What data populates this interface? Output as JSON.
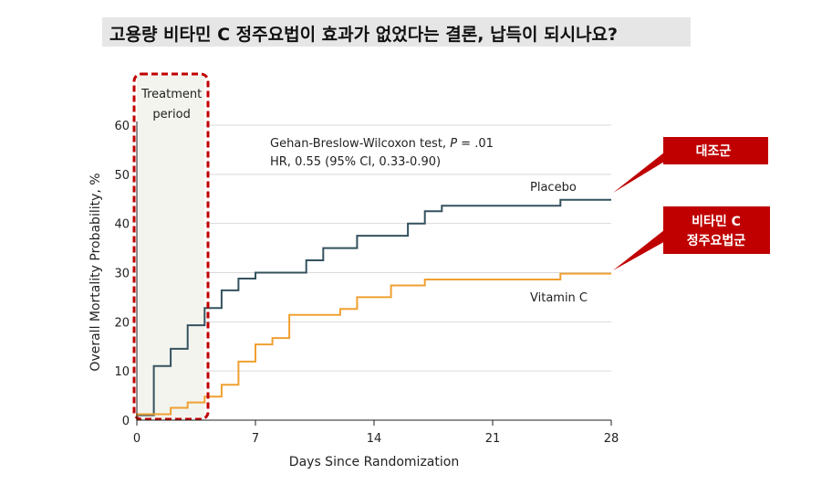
{
  "page_title": "고용량 비타민 C 정주요법이 효과가 없었다는 결론,  납득이 되시나요?",
  "colors": {
    "placebo": "#34525f",
    "vitamin_c": "#f0a030",
    "callout": "#c00000",
    "treatment_box": "#c00000",
    "treatment_fill": "#f3f4ee",
    "grid": "#d9d9d9"
  },
  "chart_data": {
    "type": "line",
    "step": true,
    "xlabel": "Days Since Randomization",
    "ylabel": "Overall Mortality Probability, %",
    "xlim": [
      0,
      28
    ],
    "ylim": [
      0,
      60
    ],
    "x_ticks": [
      0,
      7,
      14,
      21,
      28
    ],
    "y_ticks": [
      0,
      10,
      20,
      30,
      40,
      50,
      60
    ],
    "grid": true,
    "series": [
      {
        "name": "Placebo",
        "color": "#34525f",
        "points": [
          [
            0,
            1
          ],
          [
            1,
            1
          ],
          [
            1,
            11
          ],
          [
            2,
            11
          ],
          [
            2,
            14.5
          ],
          [
            3,
            14.5
          ],
          [
            3,
            19.3
          ],
          [
            4,
            19.3
          ],
          [
            4,
            22.8
          ],
          [
            5,
            22.8
          ],
          [
            5,
            26.4
          ],
          [
            6,
            26.4
          ],
          [
            6,
            28.8
          ],
          [
            7,
            28.8
          ],
          [
            7,
            30
          ],
          [
            10,
            30
          ],
          [
            10,
            32.5
          ],
          [
            11,
            32.5
          ],
          [
            11,
            35
          ],
          [
            13,
            35
          ],
          [
            13,
            37.5
          ],
          [
            16,
            37.5
          ],
          [
            16,
            40
          ],
          [
            17,
            40
          ],
          [
            17,
            42.5
          ],
          [
            18,
            42.5
          ],
          [
            18,
            43.6
          ],
          [
            25,
            43.6
          ],
          [
            25,
            44.8
          ],
          [
            28,
            44.8
          ]
        ]
      },
      {
        "name": "Vitamin C",
        "color": "#f0a030",
        "points": [
          [
            0,
            0
          ],
          [
            0,
            1.2
          ],
          [
            2,
            1.2
          ],
          [
            2,
            2.5
          ],
          [
            3,
            2.5
          ],
          [
            3,
            3.6
          ],
          [
            4,
            3.6
          ],
          [
            4,
            4.8
          ],
          [
            5,
            4.8
          ],
          [
            5,
            7.2
          ],
          [
            6,
            7.2
          ],
          [
            6,
            11.9
          ],
          [
            7,
            11.9
          ],
          [
            7,
            15.4
          ],
          [
            8,
            15.4
          ],
          [
            8,
            16.7
          ],
          [
            9,
            16.7
          ],
          [
            9,
            21.4
          ],
          [
            12,
            21.4
          ],
          [
            12,
            22.6
          ],
          [
            13,
            22.6
          ],
          [
            13,
            25
          ],
          [
            15,
            25
          ],
          [
            15,
            27.4
          ],
          [
            17,
            27.4
          ],
          [
            17,
            28.6
          ],
          [
            25,
            28.6
          ],
          [
            25,
            29.8
          ],
          [
            28,
            29.8
          ]
        ]
      }
    ],
    "treatment_period": {
      "label_line1": "Treatment",
      "label_line2": "period",
      "start_day": 0,
      "end_day": 4
    },
    "annotations": {
      "test_line1": "Gehan-Breslow-Wilcoxon test, ",
      "test_p": "P",
      "test_line1_end": " = .01",
      "test_line2": "HR, 0.55 (95% CI, 0.33-0.90)",
      "placebo_label": "Placebo",
      "vitamin_label": "Vitamin C"
    },
    "callouts": {
      "placebo": "대조군",
      "vitamin_line1": "비타민 C",
      "vitamin_line2": "정주요법군"
    }
  }
}
